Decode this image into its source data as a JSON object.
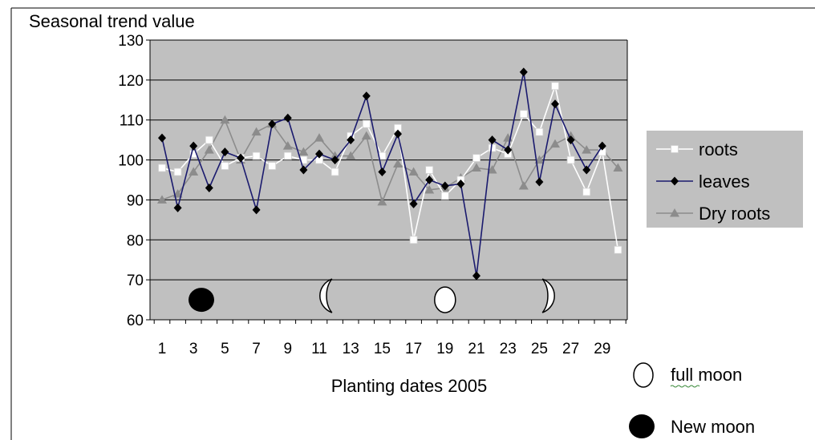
{
  "chart_data": {
    "type": "line",
    "ylabel": "Seasonal trend value",
    "xlabel": "Planting dates 2005",
    "ylim": [
      60,
      130
    ],
    "yticks": [
      60,
      70,
      80,
      90,
      100,
      110,
      120,
      130
    ],
    "x": [
      1,
      2,
      3,
      4,
      5,
      6,
      7,
      8,
      9,
      10,
      11,
      12,
      13,
      14,
      15,
      16,
      17,
      18,
      19,
      20,
      21,
      22,
      23,
      24,
      25,
      26,
      27,
      28,
      29,
      30
    ],
    "xtick_labels": [
      "1",
      "3",
      "5",
      "7",
      "9",
      "11",
      "13",
      "15",
      "17",
      "19",
      "21",
      "23",
      "25",
      "27",
      "29"
    ],
    "grid": "horizontal",
    "legend_position": "right",
    "series": [
      {
        "name": "roots",
        "color": "#ffffff",
        "marker": "square",
        "values": [
          98,
          97,
          101.5,
          105,
          98.5,
          100.5,
          101,
          98.5,
          101,
          100,
          100,
          97,
          106,
          109,
          101,
          108,
          80,
          97.5,
          91,
          95,
          100.5,
          103,
          101.5,
          111.5,
          107,
          118.5,
          100,
          92,
          102,
          77.5
        ]
      },
      {
        "name": "leaves",
        "color": "#000000",
        "line_color": "#1a1a6e",
        "marker": "diamond",
        "values": [
          105.5,
          88,
          103.5,
          93,
          102,
          100.5,
          87.5,
          109,
          110.5,
          97.5,
          101.5,
          100,
          105,
          116,
          97,
          106.5,
          89,
          95,
          93.5,
          94,
          71,
          105,
          102.5,
          122,
          94.5,
          114,
          105,
          97.5,
          103.5,
          null
        ]
      },
      {
        "name": "Dry roots",
        "color": "#8c8c8c",
        "marker": "triangle",
        "values": [
          90,
          91.5,
          97,
          102.5,
          110,
          100,
          107,
          109,
          103.5,
          102,
          105.5,
          101,
          101,
          106,
          89.5,
          99,
          97,
          92.5,
          93,
          95.5,
          98,
          97.5,
          105.5,
          93.5,
          100,
          104,
          106,
          102.5,
          102.5,
          98
        ]
      }
    ],
    "moon_phases": [
      {
        "phase": "new moon",
        "x": 3.5,
        "y": 65,
        "icon": "new-moon-icon"
      },
      {
        "phase": "first quarter",
        "x": 11.5,
        "y": 66,
        "icon": "crescent-moon-icon"
      },
      {
        "phase": "full moon",
        "x": 19,
        "y": 65,
        "icon": "full-moon-icon"
      },
      {
        "phase": "last quarter",
        "x": 25.5,
        "y": 66,
        "icon": "crescent-moon-icon"
      }
    ],
    "moon_legend": [
      {
        "label": "full moon",
        "icon": "full-moon-icon"
      },
      {
        "label": "New moon",
        "icon": "new-moon-icon"
      }
    ],
    "colors": {
      "plot_background": "#c0c0c0",
      "legend_background": "#c0c0c0",
      "gridline": "#000000"
    }
  }
}
